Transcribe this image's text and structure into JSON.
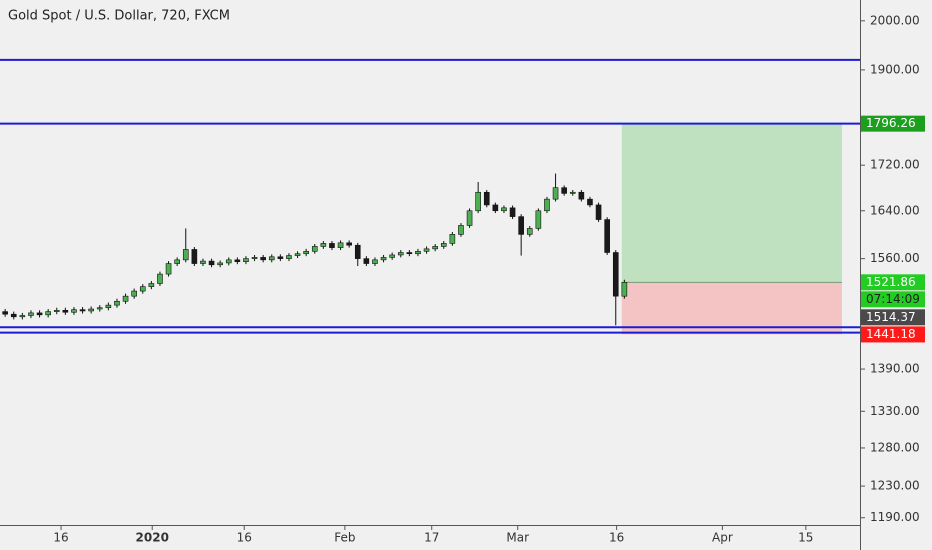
{
  "chart_data": {
    "type": "candlestick",
    "title": "Gold Spot / U.S. Dollar, 720, FXCM",
    "log": true,
    "ylim": [
      1181,
      2044
    ],
    "yticks": [
      {
        "value": 2000,
        "label": "2000.00"
      },
      {
        "value": 1900,
        "label": "1900.00"
      },
      {
        "value": 1720,
        "label": "1720.00"
      },
      {
        "value": 1640,
        "label": "1640.00"
      },
      {
        "value": 1560,
        "label": "1560.00"
      },
      {
        "value": 1390,
        "label": "1390.00"
      },
      {
        "value": 1330,
        "label": "1330.00"
      },
      {
        "value": 1280,
        "label": "1280.00"
      },
      {
        "value": 1230,
        "label": "1230.00"
      },
      {
        "value": 1190,
        "label": "1190.00"
      }
    ],
    "xlim": [
      0,
      100
    ],
    "xticks": [
      {
        "value": 7.1,
        "label": "16"
      },
      {
        "value": 17.7,
        "label": "2020"
      },
      {
        "value": 28.4,
        "label": "16"
      },
      {
        "value": 40.1,
        "label": "Feb"
      },
      {
        "value": 50.2,
        "label": "17"
      },
      {
        "value": 60.2,
        "label": "Mar"
      },
      {
        "value": 71.7,
        "label": "16"
      },
      {
        "value": 84,
        "label": "Apr"
      },
      {
        "value": 93.7,
        "label": "15"
      }
    ],
    "up_color": "#4caf50",
    "down_color": "#1a1a1a",
    "open": [
      1476,
      1472,
      1468,
      1470,
      1474,
      1471,
      1476,
      1478,
      1475,
      1479,
      1477,
      1480,
      1482,
      1486,
      1492,
      1500,
      1508,
      1515,
      1520,
      1535,
      1552,
      1558,
      1575,
      1552,
      1556,
      1550,
      1553,
      1558,
      1555,
      1560,
      1562,
      1558,
      1563,
      1560,
      1565,
      1568,
      1572,
      1580,
      1585,
      1578,
      1586,
      1582,
      1560,
      1552,
      1558,
      1562,
      1566,
      1570,
      1568,
      1572,
      1576,
      1580,
      1585,
      1600,
      1615,
      1640,
      1672,
      1650,
      1640,
      1645,
      1630,
      1600,
      1610,
      1640,
      1660,
      1680,
      1670,
      1672,
      1660,
      1650,
      1625,
      1570,
      1500
    ],
    "high": [
      1480,
      1476,
      1474,
      1478,
      1478,
      1480,
      1482,
      1482,
      1483,
      1483,
      1484,
      1486,
      1490,
      1496,
      1504,
      1512,
      1519,
      1524,
      1539,
      1556,
      1562,
      1610,
      1579,
      1560,
      1560,
      1557,
      1562,
      1562,
      1564,
      1566,
      1566,
      1567,
      1567,
      1569,
      1572,
      1576,
      1584,
      1589,
      1589,
      1590,
      1590,
      1586,
      1564,
      1562,
      1566,
      1570,
      1574,
      1574,
      1576,
      1580,
      1584,
      1589,
      1604,
      1619,
      1644,
      1690,
      1676,
      1654,
      1649,
      1649,
      1634,
      1614,
      1644,
      1664,
      1705,
      1684,
      1676,
      1676,
      1664,
      1654,
      1629,
      1574,
      1526
    ],
    "low": [
      1468,
      1464,
      1464,
      1466,
      1467,
      1467,
      1472,
      1471,
      1471,
      1473,
      1473,
      1476,
      1478,
      1482,
      1488,
      1496,
      1504,
      1511,
      1516,
      1531,
      1548,
      1554,
      1548,
      1548,
      1546,
      1546,
      1549,
      1551,
      1551,
      1556,
      1554,
      1554,
      1556,
      1556,
      1561,
      1564,
      1568,
      1576,
      1574,
      1574,
      1578,
      1548,
      1548,
      1548,
      1554,
      1558,
      1562,
      1564,
      1564,
      1568,
      1572,
      1576,
      1581,
      1596,
      1611,
      1636,
      1646,
      1636,
      1636,
      1626,
      1565,
      1596,
      1606,
      1636,
      1656,
      1666,
      1666,
      1656,
      1646,
      1621,
      1566,
      1455,
      1496
    ],
    "close": [
      1472,
      1468,
      1470,
      1474,
      1471,
      1476,
      1478,
      1475,
      1479,
      1477,
      1480,
      1482,
      1486,
      1492,
      1500,
      1508,
      1515,
      1520,
      1535,
      1552,
      1558,
      1575,
      1552,
      1556,
      1550,
      1553,
      1558,
      1555,
      1560,
      1562,
      1558,
      1563,
      1560,
      1565,
      1568,
      1572,
      1580,
      1585,
      1578,
      1586,
      1582,
      1560,
      1552,
      1558,
      1562,
      1566,
      1570,
      1568,
      1572,
      1576,
      1580,
      1585,
      1600,
      1615,
      1640,
      1672,
      1650,
      1640,
      1645,
      1630,
      1600,
      1610,
      1640,
      1660,
      1680,
      1670,
      1672,
      1660,
      1650,
      1625,
      1570,
      1500,
      1521.86
    ],
    "levels": {
      "values": [
        1920,
        1796.26,
        1452,
        1444
      ],
      "color": "#1c1cd4"
    },
    "position": {
      "target": 1796.26,
      "entry": 1521.86,
      "stop": 1441.18,
      "last_price": 1514.37,
      "countdown": "07:14:09",
      "target_color": "#bfe1bf",
      "stop_color": "#f4c4c4",
      "tag_target_color": "#1e9e1e",
      "tag_entry_color": "#22cc22",
      "tag_last_color": "#4a4a4a",
      "tag_stop_color": "#ff1a1a"
    }
  }
}
